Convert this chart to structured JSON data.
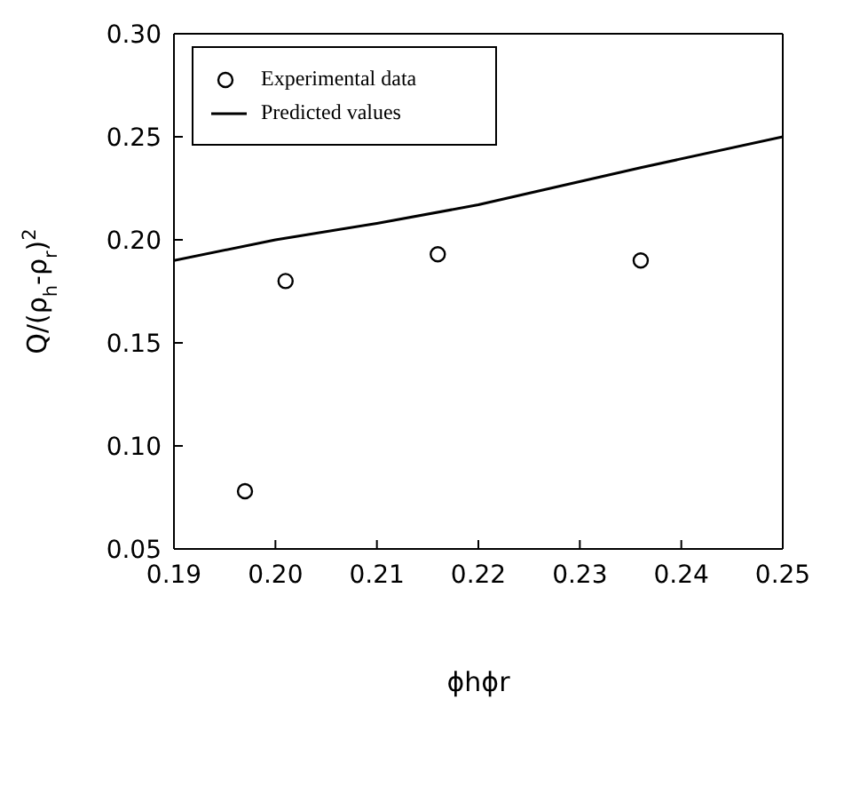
{
  "chart_data": {
    "type": "scatter",
    "xlabel": "ϕhϕr",
    "ylabel": "Q/(ρ$_{h}$-ρ$_{r}$)$^{2}$",
    "xlim": [
      0.19,
      0.25
    ],
    "xticks": [
      {
        "value": 0.19,
        "label": "0.19"
      },
      {
        "value": 0.2,
        "label": "0.20"
      },
      {
        "value": 0.21,
        "label": "0.21"
      },
      {
        "value": 0.22,
        "label": "0.22"
      },
      {
        "value": 0.23,
        "label": "0.23"
      },
      {
        "value": 0.24,
        "label": "0.24"
      },
      {
        "value": 0.25,
        "label": "0.25"
      }
    ],
    "ylim": [
      0.05,
      0.3
    ],
    "yticks": [
      {
        "value": 0.05,
        "label": "0.05"
      },
      {
        "value": 0.1,
        "label": "0.10"
      },
      {
        "value": 0.15,
        "label": "0.15"
      },
      {
        "value": 0.2,
        "label": "0.20"
      },
      {
        "value": 0.25,
        "label": "0.25"
      },
      {
        "value": 0.3,
        "label": "0.30"
      }
    ],
    "grid": false,
    "legend": "top left",
    "series": [
      {
        "name": "Experimental data",
        "marker": "circle",
        "color": "#000000",
        "x": [
          0.197,
          0.201,
          0.216,
          0.236
        ],
        "values": [
          0.078,
          0.18,
          0.193,
          0.19
        ]
      },
      {
        "name": "Predicted values",
        "type": "line",
        "marker": "none",
        "line_style": "solid",
        "color": "#000000",
        "x": [
          0.19,
          0.2,
          0.21,
          0.22,
          0.236,
          0.25
        ],
        "values": [
          0.19,
          0.2,
          0.208,
          0.217,
          0.235,
          0.25
        ]
      }
    ]
  }
}
